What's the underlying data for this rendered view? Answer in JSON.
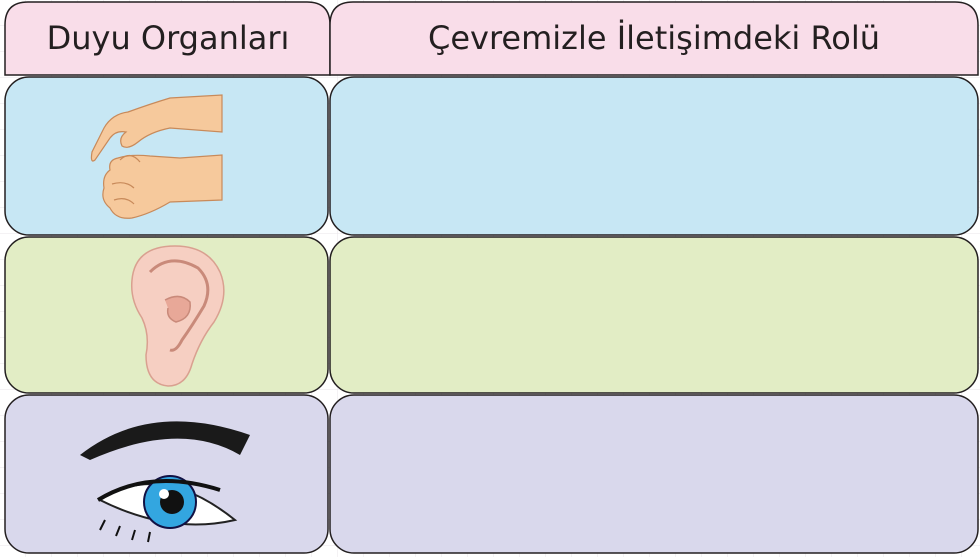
{
  "table": {
    "header": [
      "Duyu Organları",
      "Çevremizle İletişimdeki Rolü"
    ]
  }
}
